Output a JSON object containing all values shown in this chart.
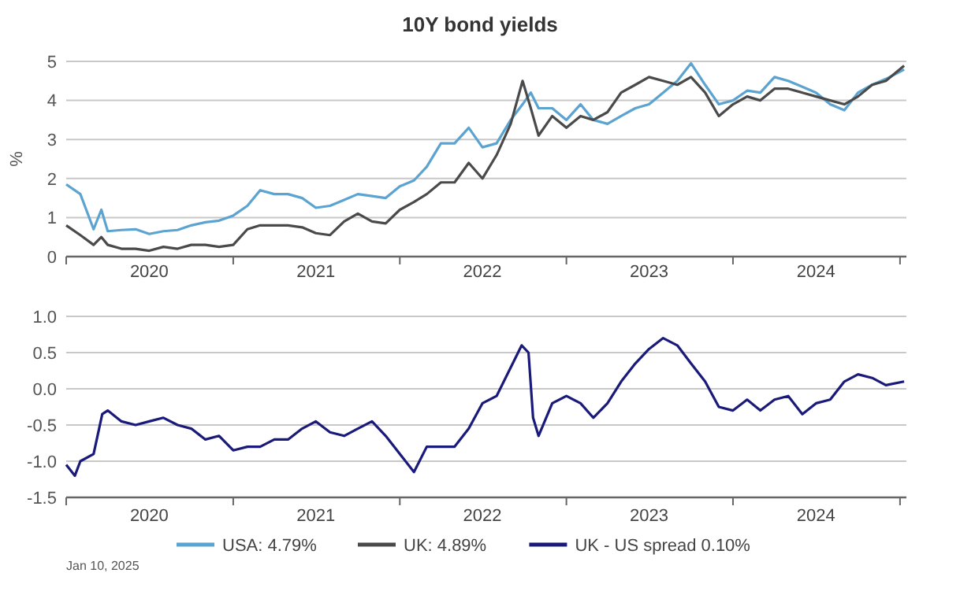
{
  "chart_data": [
    {
      "type": "line",
      "title": "10Y bond yields",
      "ylabel": "%",
      "xlim": [
        "2020-01-01",
        "2025-01-15"
      ],
      "xticks": [
        {
          "value": "2020-01-01",
          "label": null
        },
        {
          "value": "2020-07-01",
          "label": "2020"
        },
        {
          "value": "2021-01-01",
          "label": null
        },
        {
          "value": "2021-07-01",
          "label": "2021"
        },
        {
          "value": "2022-01-01",
          "label": null
        },
        {
          "value": "2022-07-01",
          "label": "2022"
        },
        {
          "value": "2023-01-01",
          "label": null
        },
        {
          "value": "2023-07-01",
          "label": "2023"
        },
        {
          "value": "2024-01-01",
          "label": null
        },
        {
          "value": "2024-07-01",
          "label": "2024"
        },
        {
          "value": "2025-01-01",
          "label": null
        }
      ],
      "ylim": [
        0,
        5
      ],
      "yticks": [
        0,
        1,
        2,
        3,
        4,
        5
      ],
      "grid": "y",
      "legend": "bottom",
      "line_style": "solid",
      "marker": "none",
      "x": [
        "2020-01-01",
        "2020-02-01",
        "2020-03-01",
        "2020-03-18",
        "2020-04-01",
        "2020-05-01",
        "2020-06-01",
        "2020-07-01",
        "2020-08-01",
        "2020-09-01",
        "2020-10-01",
        "2020-11-01",
        "2020-12-01",
        "2021-01-01",
        "2021-02-01",
        "2021-03-01",
        "2021-04-01",
        "2021-05-01",
        "2021-06-01",
        "2021-07-01",
        "2021-08-01",
        "2021-09-01",
        "2021-10-01",
        "2021-11-01",
        "2021-12-01",
        "2022-01-01",
        "2022-02-01",
        "2022-03-01",
        "2022-04-01",
        "2022-05-01",
        "2022-06-01",
        "2022-07-01",
        "2022-08-01",
        "2022-09-01",
        "2022-09-27",
        "2022-10-15",
        "2022-11-01",
        "2022-12-01",
        "2023-01-01",
        "2023-02-01",
        "2023-03-01",
        "2023-04-01",
        "2023-05-01",
        "2023-06-01",
        "2023-07-01",
        "2023-08-01",
        "2023-09-01",
        "2023-10-01",
        "2023-11-01",
        "2023-12-01",
        "2024-01-01",
        "2024-02-01",
        "2024-03-01",
        "2024-04-01",
        "2024-05-01",
        "2024-06-01",
        "2024-07-01",
        "2024-08-01",
        "2024-09-01",
        "2024-10-01",
        "2024-11-01",
        "2024-12-01",
        "2025-01-10"
      ],
      "series": [
        {
          "name": "USA: 4.79%",
          "color": "#5ba3d0",
          "values": [
            1.85,
            1.6,
            0.7,
            1.2,
            0.65,
            0.68,
            0.7,
            0.58,
            0.65,
            0.68,
            0.8,
            0.88,
            0.92,
            1.05,
            1.3,
            1.7,
            1.6,
            1.6,
            1.5,
            1.25,
            1.3,
            1.45,
            1.6,
            1.55,
            1.5,
            1.8,
            1.95,
            2.3,
            2.9,
            2.9,
            3.3,
            2.8,
            2.9,
            3.5,
            3.9,
            4.2,
            3.8,
            3.8,
            3.5,
            3.9,
            3.5,
            3.4,
            3.6,
            3.8,
            3.9,
            4.2,
            4.5,
            4.95,
            4.4,
            3.9,
            4.0,
            4.25,
            4.2,
            4.6,
            4.5,
            4.35,
            4.2,
            3.9,
            3.75,
            4.2,
            4.4,
            4.55,
            4.79
          ]
        },
        {
          "name": "UK: 4.89%",
          "color": "#4a4a4a",
          "values": [
            0.8,
            0.55,
            0.3,
            0.5,
            0.3,
            0.2,
            0.2,
            0.15,
            0.25,
            0.2,
            0.3,
            0.3,
            0.25,
            0.3,
            0.7,
            0.8,
            0.8,
            0.8,
            0.75,
            0.6,
            0.55,
            0.9,
            1.1,
            0.9,
            0.85,
            1.2,
            1.4,
            1.6,
            1.9,
            1.9,
            2.4,
            2.0,
            2.6,
            3.4,
            4.5,
            3.8,
            3.1,
            3.6,
            3.3,
            3.6,
            3.5,
            3.7,
            4.2,
            4.4,
            4.6,
            4.5,
            4.4,
            4.6,
            4.2,
            3.6,
            3.9,
            4.1,
            4.0,
            4.3,
            4.3,
            4.2,
            4.1,
            4.0,
            3.9,
            4.1,
            4.4,
            4.5,
            4.89
          ]
        }
      ]
    },
    {
      "type": "line",
      "xlim": [
        "2020-01-01",
        "2025-01-15"
      ],
      "xticks": [
        {
          "value": "2020-01-01",
          "label": null
        },
        {
          "value": "2020-07-01",
          "label": "2020"
        },
        {
          "value": "2021-01-01",
          "label": null
        },
        {
          "value": "2021-07-01",
          "label": "2021"
        },
        {
          "value": "2022-01-01",
          "label": null
        },
        {
          "value": "2022-07-01",
          "label": "2022"
        },
        {
          "value": "2023-01-01",
          "label": null
        },
        {
          "value": "2023-07-01",
          "label": "2023"
        },
        {
          "value": "2024-01-01",
          "label": null
        },
        {
          "value": "2024-07-01",
          "label": "2024"
        },
        {
          "value": "2025-01-01",
          "label": null
        }
      ],
      "ylim": [
        -1.5,
        1.0
      ],
      "yticks": [
        {
          "value": -1.5,
          "label": "-1.5"
        },
        {
          "value": -1,
          "label": "-1.0"
        },
        {
          "value": -0.5,
          "label": "-0.5"
        },
        {
          "value": 0,
          "label": "0.0"
        },
        {
          "value": 0.5,
          "label": "0.5"
        },
        {
          "value": 1,
          "label": "1.0"
        }
      ],
      "grid": "y",
      "legend": "bottom",
      "line_style": "solid",
      "marker": "none",
      "annotations": [
        "Jan 10, 2025"
      ],
      "x": [
        "2020-01-01",
        "2020-01-20",
        "2020-02-01",
        "2020-03-01",
        "2020-03-20",
        "2020-04-01",
        "2020-05-01",
        "2020-06-01",
        "2020-07-01",
        "2020-08-01",
        "2020-09-01",
        "2020-10-01",
        "2020-11-01",
        "2020-12-01",
        "2021-01-01",
        "2021-02-01",
        "2021-03-01",
        "2021-04-01",
        "2021-05-01",
        "2021-06-01",
        "2021-07-01",
        "2021-08-01",
        "2021-09-01",
        "2021-10-01",
        "2021-11-01",
        "2021-12-01",
        "2022-01-01",
        "2022-02-01",
        "2022-03-01",
        "2022-04-01",
        "2022-05-01",
        "2022-06-01",
        "2022-07-01",
        "2022-08-01",
        "2022-09-25",
        "2022-10-10",
        "2022-10-20",
        "2022-11-01",
        "2022-12-01",
        "2023-01-01",
        "2023-02-01",
        "2023-03-01",
        "2023-04-01",
        "2023-05-01",
        "2023-06-01",
        "2023-07-01",
        "2023-08-01",
        "2023-09-01",
        "2023-10-01",
        "2023-11-01",
        "2023-12-01",
        "2024-01-01",
        "2024-02-01",
        "2024-03-01",
        "2024-04-01",
        "2024-05-01",
        "2024-06-01",
        "2024-07-01",
        "2024-08-01",
        "2024-09-01",
        "2024-10-01",
        "2024-11-01",
        "2024-12-01",
        "2025-01-10"
      ],
      "series": [
        {
          "name": "UK - US spread 0.10%",
          "color": "#1a1a7a",
          "values": [
            -1.05,
            -1.2,
            -1.0,
            -0.9,
            -0.35,
            -0.3,
            -0.45,
            -0.5,
            -0.45,
            -0.4,
            -0.5,
            -0.55,
            -0.7,
            -0.65,
            -0.85,
            -0.8,
            -0.8,
            -0.7,
            -0.7,
            -0.55,
            -0.45,
            -0.6,
            -0.65,
            -0.55,
            -0.45,
            -0.65,
            -0.9,
            -1.15,
            -0.8,
            -0.8,
            -0.8,
            -0.55,
            -0.2,
            -0.1,
            0.6,
            0.5,
            -0.4,
            -0.65,
            -0.2,
            -0.1,
            -0.2,
            -0.4,
            -0.2,
            0.1,
            0.35,
            0.55,
            0.7,
            0.6,
            0.35,
            0.1,
            -0.25,
            -0.3,
            -0.15,
            -0.3,
            -0.15,
            -0.1,
            -0.35,
            -0.2,
            -0.15,
            0.1,
            0.2,
            0.15,
            0.05,
            0.1
          ]
        }
      ]
    }
  ]
}
